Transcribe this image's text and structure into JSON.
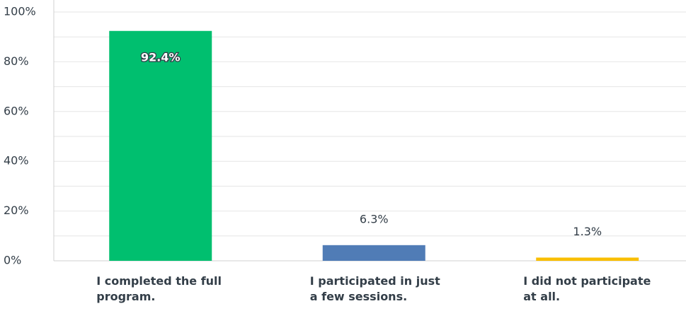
{
  "chart_data": {
    "type": "bar",
    "categories": [
      "I completed the full program.",
      "I participated in just a few sessions.",
      "I did not participate at all."
    ],
    "values": [
      92.4,
      6.3,
      1.3
    ],
    "value_labels": [
      "92.4%",
      "6.3%",
      "1.3%"
    ],
    "colors": [
      "#00bf6f",
      "#507cb6",
      "#f9be00"
    ],
    "ylim": [
      0,
      100
    ],
    "yticks": [
      {
        "value": 0,
        "label": "0%"
      },
      {
        "value": 20,
        "label": "20%"
      },
      {
        "value": 40,
        "label": "40%"
      },
      {
        "value": 60,
        "label": "60%"
      },
      {
        "value": 80,
        "label": "80%"
      },
      {
        "value": 100,
        "label": "100%"
      }
    ],
    "grid": true
  }
}
